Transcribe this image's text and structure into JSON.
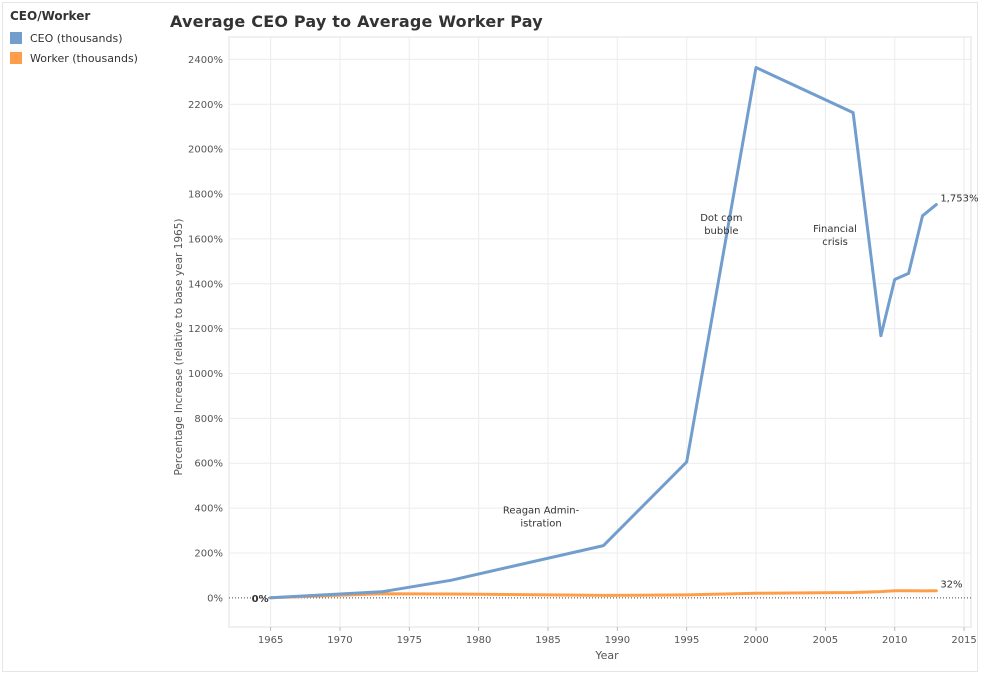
{
  "legend": {
    "title": "CEO/Worker",
    "items": [
      {
        "label": "CEO (thousands)",
        "color": "#729ece"
      },
      {
        "label": "Worker (thousands)",
        "color": "#ff9e4a"
      }
    ]
  },
  "chart_data": {
    "type": "line",
    "title": "Average CEO Pay to Average Worker Pay",
    "xlabel": "Year",
    "ylabel": "Percentage Increase (relative to base year 1965)",
    "xlim": [
      1962,
      2015.5
    ],
    "ylim": [
      -130,
      2500
    ],
    "x_ticks": [
      1965,
      1970,
      1975,
      1980,
      1985,
      1990,
      1995,
      2000,
      2005,
      2010,
      2015
    ],
    "y_ticks": [
      0,
      200,
      400,
      600,
      800,
      1000,
      1200,
      1400,
      1600,
      1800,
      2000,
      2200,
      2400
    ],
    "y_tick_suffix": "%",
    "grid": true,
    "baseline_zero_dotted": true,
    "series": [
      {
        "name": "CEO (thousands)",
        "color": "#729ece",
        "x": [
          1965,
          1973,
          1978,
          1989,
          1995,
          2000,
          2007,
          2009,
          2010,
          2011,
          2012,
          2013
        ],
        "values": [
          0,
          27,
          78,
          233,
          606,
          2364,
          2163,
          1168,
          1419,
          1446,
          1703,
          1753
        ]
      },
      {
        "name": "Worker (thousands)",
        "color": "#ff9e4a",
        "x": [
          1965,
          1973,
          1978,
          1989,
          1995,
          2000,
          2007,
          2009,
          2010,
          2011,
          2012,
          2013
        ],
        "values": [
          0,
          18,
          17,
          11,
          13,
          20,
          24,
          28,
          32,
          32,
          31,
          32
        ]
      }
    ],
    "data_labels": [
      {
        "text": "0%",
        "x": 1965,
        "y": 0,
        "bold": true
      },
      {
        "text": "1,753%",
        "x": 2013,
        "y": 1753
      },
      {
        "text": "32%",
        "x": 2013,
        "y": 32
      }
    ],
    "annotations": [
      {
        "lines": [
          "Reagan Admin-",
          "istration"
        ],
        "x": 1984.5,
        "y": 375
      },
      {
        "lines": [
          "Dot com",
          "bubble"
        ],
        "x": 1997.5,
        "y": 1680
      },
      {
        "lines": [
          "Financial",
          "crisis"
        ],
        "x": 2005.7,
        "y": 1630
      }
    ]
  }
}
